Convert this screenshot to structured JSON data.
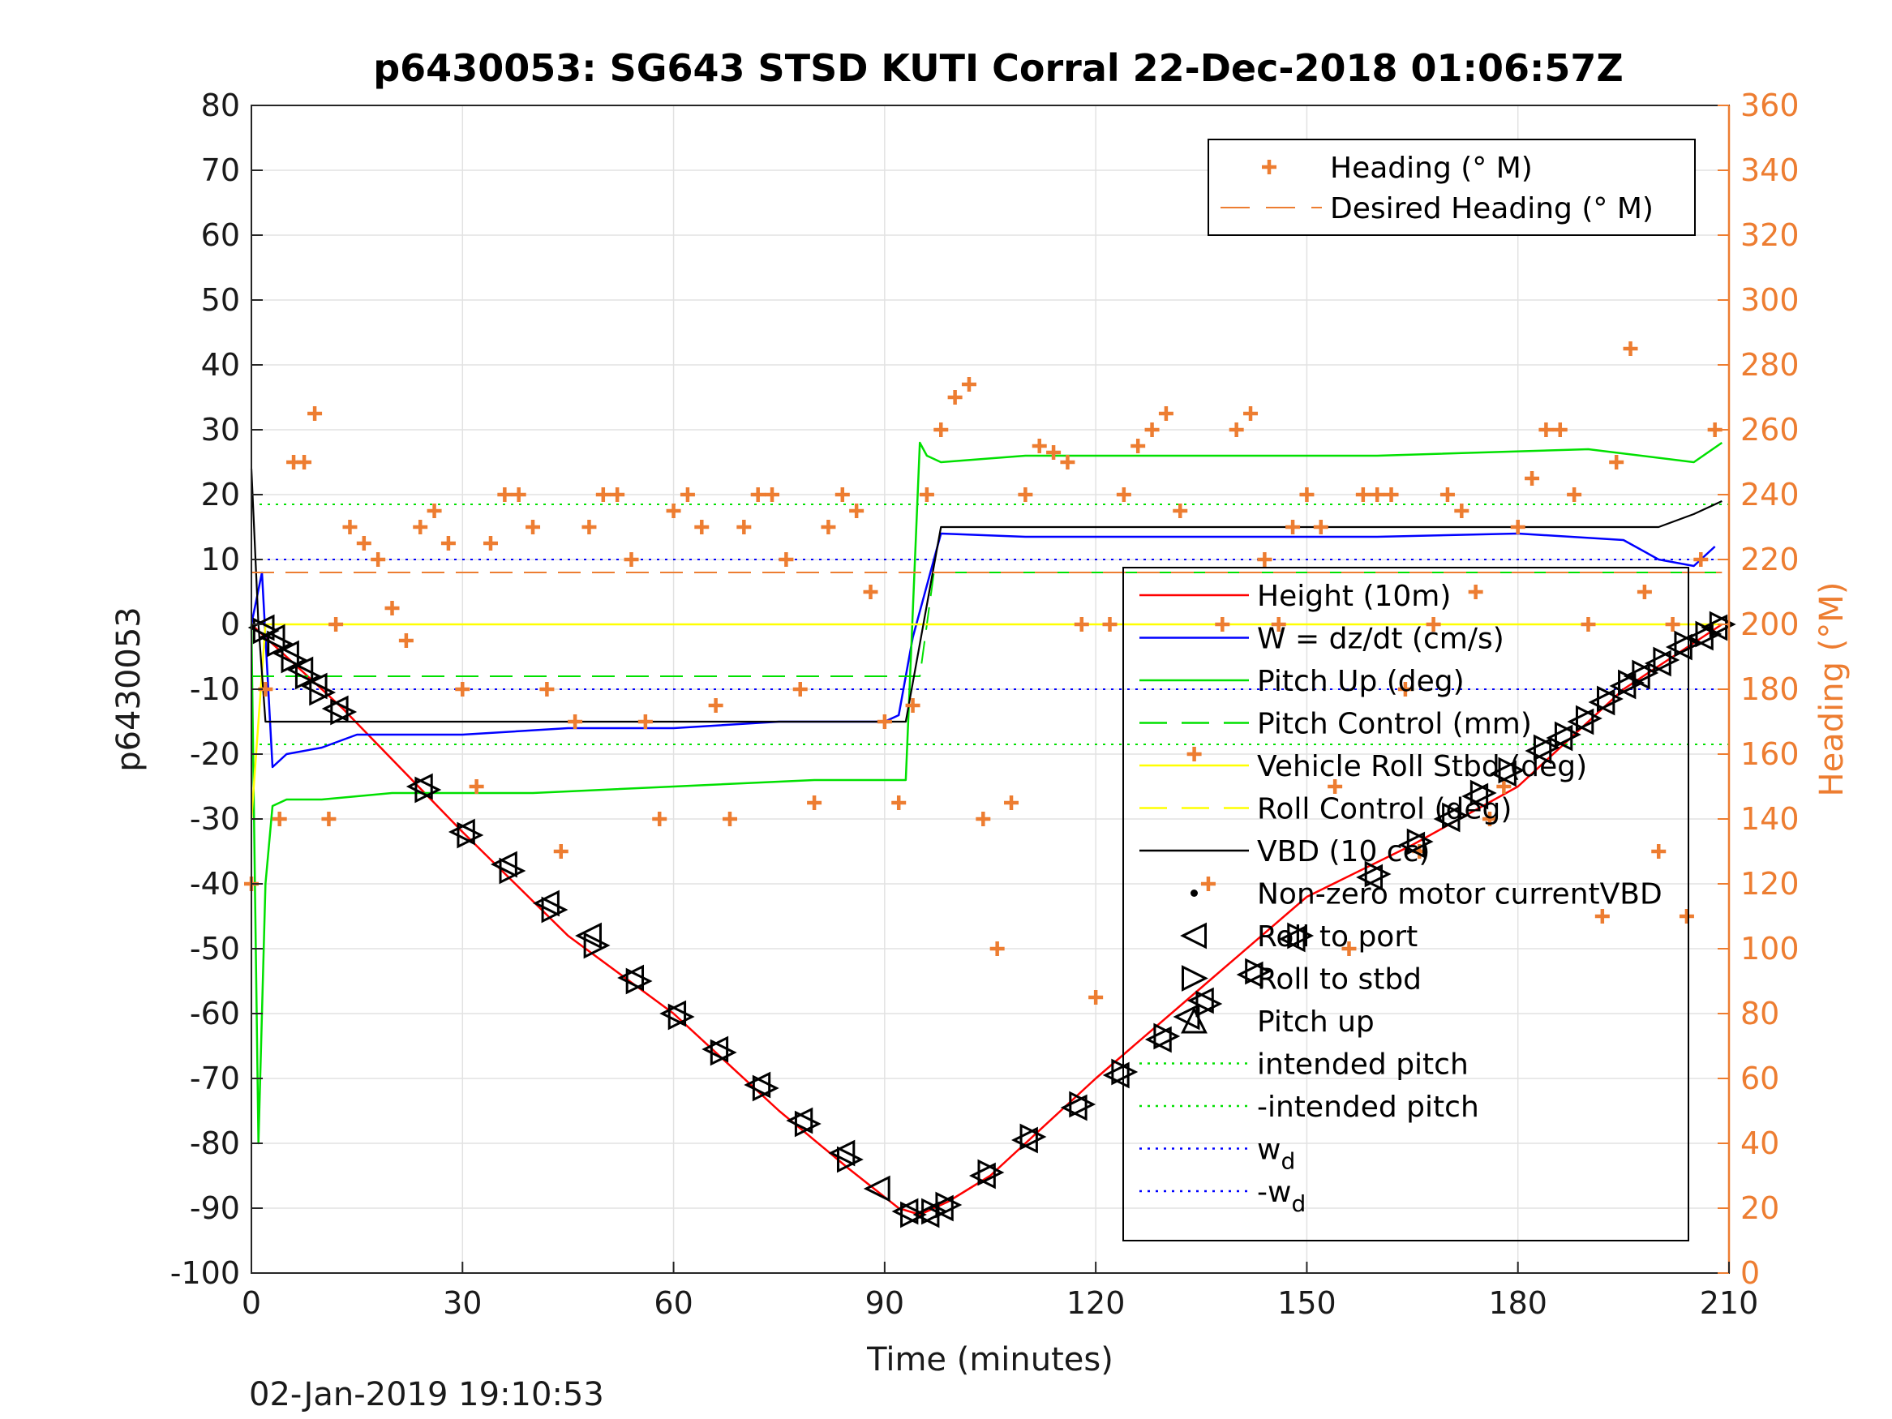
{
  "chart_data": {
    "type": "line",
    "title": "p6430053: SG643 STSD KUTI Corral 22-Dec-2018 01:06:57Z",
    "xlabel": "Time (minutes)",
    "ylabel_left": "p6430053",
    "ylabel_right": "Heading (°M)",
    "footer": "02-Jan-2019 19:10:53",
    "xlim": [
      0,
      210
    ],
    "ylim_left": [
      -100,
      80
    ],
    "ylim_right": [
      0,
      360
    ],
    "x_ticks": [
      0,
      30,
      60,
      90,
      120,
      150,
      180,
      210
    ],
    "y_ticks_left": [
      80,
      70,
      60,
      50,
      40,
      30,
      20,
      10,
      0,
      -10,
      -20,
      -30,
      -40,
      -50,
      -60,
      -70,
      -80,
      -90,
      -100
    ],
    "y_ticks_right": [
      360,
      340,
      320,
      300,
      280,
      260,
      240,
      220,
      200,
      180,
      160,
      140,
      120,
      100,
      80,
      60,
      40,
      20,
      0
    ],
    "grid": true,
    "colors": {
      "orange": "#ED7D31",
      "height": "#ff0000",
      "w": "#0000ff",
      "pitch": "#00e000",
      "roll": "#ffff00",
      "vbd": "#000000"
    },
    "legend_right_axis": {
      "position": "top-right",
      "entries": [
        {
          "label": "Heading (° M)",
          "marker": "plus",
          "color": "#ED7D31"
        },
        {
          "label": "Desired Heading (° M)",
          "marker": "dash",
          "color": "#ED7D31"
        }
      ]
    },
    "legend_left_axis": {
      "position": "right",
      "entries": [
        {
          "label": "Height (10m)",
          "style": "solid",
          "color": "#ff0000"
        },
        {
          "label": "W = dz/dt (cm/s)",
          "style": "solid",
          "color": "#0000ff"
        },
        {
          "label": "Pitch Up (deg)",
          "style": "solid",
          "color": "#00e000"
        },
        {
          "label": "Pitch Control (mm)",
          "style": "dash",
          "color": "#00e000"
        },
        {
          "label": "Vehicle Roll Stbd (deg)",
          "style": "solid",
          "color": "#ffff00"
        },
        {
          "label": "Roll Control (deg)",
          "style": "dash",
          "color": "#ffff00"
        },
        {
          "label": "VBD (10 cc)",
          "style": "solid",
          "color": "#000000"
        },
        {
          "label": "Non-zero motor currentVBD",
          "style": "dot-marker",
          "color": "#000000"
        },
        {
          "label": "Roll to port",
          "style": "tri-left",
          "color": "#000000"
        },
        {
          "label": "Roll to stbd",
          "style": "tri-right",
          "color": "#000000"
        },
        {
          "label": "Pitch up",
          "style": "tri-up",
          "color": "#000000"
        },
        {
          "label": "intended pitch",
          "style": "dotted",
          "color": "#00e000"
        },
        {
          "label": "-intended pitch",
          "style": "dotted",
          "color": "#00e000"
        },
        {
          "label": "w",
          "subscript": "d",
          "style": "dotted",
          "color": "#0000ff"
        },
        {
          "label": "-w",
          "subscript": "d",
          "style": "dotted",
          "color": "#0000ff"
        }
      ]
    },
    "reference_lines": [
      {
        "name": "intended pitch",
        "y": 18.5
      },
      {
        "name": "-intended pitch",
        "y": -18.5
      },
      {
        "name": "w_d",
        "y": 10
      },
      {
        "name": "-w_d",
        "y": -10
      }
    ],
    "series": [
      {
        "name": "Height (10m)",
        "x": [
          0,
          13,
          30,
          45,
          60,
          75,
          85,
          92,
          95,
          99,
          105,
          120,
          135,
          150,
          165,
          180,
          195,
          209
        ],
        "y": [
          0,
          -13,
          -32,
          -48,
          -60,
          -75,
          -84,
          -90,
          -91,
          -89,
          -85,
          -70,
          -56,
          -42,
          -34,
          -25,
          -10,
          0
        ]
      },
      {
        "name": "W = dz/dt (cm/s)",
        "x": [
          0,
          1.5,
          3,
          5,
          10,
          15,
          30,
          45,
          60,
          75,
          90,
          92,
          94,
          97,
          98,
          110,
          125,
          140,
          160,
          180,
          195,
          200,
          205,
          208
        ],
        "y": [
          0,
          8,
          -22,
          -20,
          -19,
          -17,
          -17,
          -16,
          -16,
          -15,
          -15,
          -14,
          -2,
          10,
          14,
          13.5,
          13.5,
          13.5,
          13.5,
          14,
          13,
          10,
          9,
          12
        ]
      },
      {
        "name": "Pitch Up (deg)",
        "x": [
          0,
          1,
          2,
          3,
          5,
          10,
          20,
          40,
          60,
          80,
          93,
          95,
          96,
          98,
          110,
          130,
          160,
          190,
          205,
          209
        ],
        "y": [
          0,
          -80,
          -40,
          -28,
          -27,
          -27,
          -26,
          -26,
          -25,
          -24,
          -24,
          28,
          26,
          25,
          26,
          26,
          26,
          27,
          25,
          28
        ]
      },
      {
        "name": "Pitch Control (mm)",
        "x": [
          0,
          2,
          95,
          97,
          209
        ],
        "y": [
          -8,
          -8,
          -8,
          8,
          8
        ]
      },
      {
        "name": "Vehicle Roll Stbd (deg)",
        "x": [
          0,
          2,
          4,
          10,
          20,
          40,
          60,
          80,
          93,
          98,
          120,
          150,
          180,
          200,
          209
        ],
        "y": [
          -30,
          0,
          0,
          0,
          0,
          0,
          0,
          0,
          0,
          0,
          0,
          0,
          0,
          0,
          0
        ]
      },
      {
        "name": "VBD (10 cc)",
        "x": [
          0,
          1,
          2,
          93,
          98,
          200,
          205,
          209
        ],
        "y": [
          24,
          0,
          -15,
          -15,
          15,
          15,
          17,
          19
        ]
      },
      {
        "name": "Desired Heading (° M)",
        "axis": "right",
        "x": [
          0,
          209
        ],
        "y": [
          216,
          216
        ]
      },
      {
        "name": "Heading (° M)",
        "axis": "right",
        "x": [
          0,
          2,
          4,
          6,
          7.5,
          9,
          11,
          12,
          14,
          16,
          18,
          20,
          22,
          24,
          26,
          28,
          30,
          32,
          34,
          36,
          38,
          40,
          42,
          44,
          46,
          48,
          50,
          52,
          54,
          56,
          58,
          60,
          62,
          64,
          66,
          68,
          70,
          72,
          74,
          76,
          78,
          80,
          82,
          84,
          86,
          88,
          90,
          92,
          94,
          96,
          98,
          100,
          102,
          104,
          106,
          108,
          110,
          112,
          114,
          116,
          118,
          120,
          122,
          124,
          126,
          128,
          130,
          132,
          134,
          136,
          138,
          140,
          142,
          144,
          146,
          148,
          150,
          152,
          154,
          156,
          158,
          160,
          162,
          164,
          166,
          168,
          170,
          172,
          174,
          176,
          178,
          180,
          182,
          184,
          186,
          188,
          190,
          192,
          194,
          196,
          198,
          200,
          202,
          204,
          206,
          208
        ],
        "y": [
          120,
          180,
          140,
          250,
          250,
          265,
          140,
          200,
          230,
          225,
          220,
          205,
          195,
          230,
          235,
          225,
          180,
          150,
          225,
          240,
          240,
          230,
          180,
          130,
          170,
          230,
          240,
          240,
          220,
          170,
          140,
          235,
          240,
          230,
          175,
          140,
          230,
          240,
          240,
          220,
          180,
          145,
          230,
          240,
          235,
          210,
          170,
          145,
          175,
          240,
          260,
          270,
          274,
          140,
          100,
          145,
          240,
          255,
          253,
          250,
          200,
          85,
          200,
          240,
          255,
          260,
          265,
          235,
          160,
          120,
          200,
          260,
          265,
          220,
          200,
          230,
          240,
          230,
          150,
          100,
          240,
          240,
          240,
          180,
          130,
          200,
          240,
          235,
          210,
          140,
          150,
          230,
          245,
          260,
          260,
          240,
          200,
          110,
          250,
          285,
          210,
          130,
          200,
          110,
          220,
          260
        ]
      }
    ],
    "markers": {
      "roll_to_port": {
        "x": [
          1.5,
          3,
          5,
          7,
          9,
          12,
          24,
          30,
          36,
          42,
          48,
          54,
          60,
          66,
          72,
          78,
          84,
          89,
          93,
          96,
          98,
          104,
          110,
          117,
          123,
          129,
          133,
          135,
          142,
          148,
          159,
          165,
          170,
          174,
          178,
          183,
          186,
          189,
          192,
          195,
          197,
          200,
          203,
          206,
          208
        ],
        "y": [
          -0.5,
          -2,
          -4.5,
          -7,
          -9.5,
          -13,
          -25,
          -32,
          -37,
          -43,
          -48,
          -54.5,
          -60,
          -65.5,
          -71,
          -76.5,
          -81.5,
          -87,
          -90.5,
          -91,
          -90,
          -85,
          -79.5,
          -74.5,
          -69.5,
          -64,
          -60.5,
          -58,
          -54,
          -48.5,
          -39,
          -34,
          -30,
          -26.5,
          -23,
          -19.5,
          -17.5,
          -15,
          -12,
          -9.5,
          -8,
          -6,
          -3.5,
          -2,
          -0.5
        ]
      },
      "roll_to_stbd": {
        "x": [
          2,
          4,
          6,
          8,
          10,
          13,
          25,
          31,
          37,
          43,
          49,
          55,
          61,
          67,
          73,
          79,
          85,
          94,
          97,
          99,
          105,
          111,
          118,
          124,
          130,
          136,
          143,
          149,
          160,
          166,
          171,
          175,
          179,
          184,
          187,
          190,
          193,
          196,
          198,
          201,
          204,
          207,
          209
        ],
        "y": [
          -1,
          -3,
          -5.5,
          -8,
          -10.5,
          -13.5,
          -25.5,
          -32.5,
          -38,
          -44,
          -49.5,
          -55,
          -60.5,
          -66,
          -71.5,
          -77,
          -82.5,
          -91,
          -90.5,
          -89.5,
          -84.5,
          -79,
          -74,
          -69,
          -63.5,
          -58.5,
          -53.5,
          -48,
          -38.5,
          -33.5,
          -29.5,
          -26,
          -22.5,
          -19,
          -17,
          -14.5,
          -11.5,
          -9,
          -7.5,
          -5.5,
          -3,
          -1.5,
          0
        ]
      }
    }
  }
}
